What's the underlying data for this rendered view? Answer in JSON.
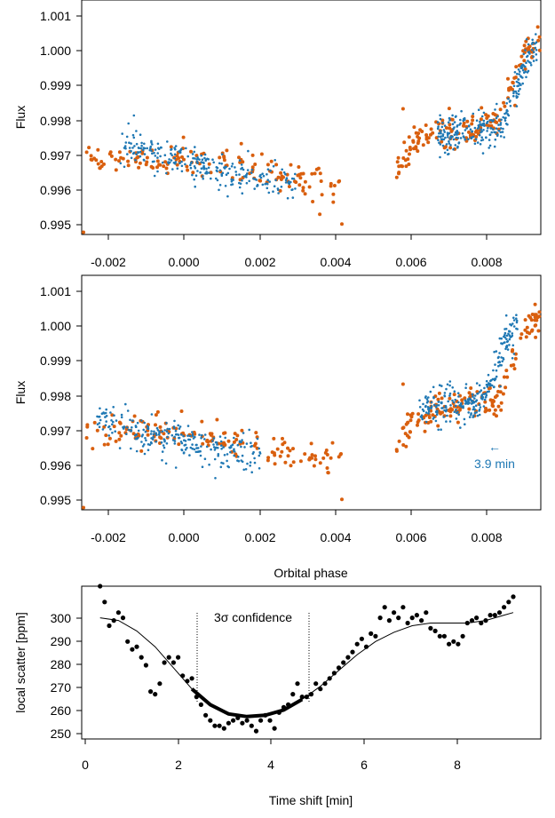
{
  "colors": {
    "orange": "#d95f0e",
    "blue": "#1f78b4",
    "black": "#000000"
  },
  "chart_data": [
    {
      "type": "scatter",
      "ylabel": "Flux",
      "xlim": [
        -0.0025,
        0.0095
      ],
      "ylim": [
        0.99495,
        1.0012
      ],
      "xticks": [
        "-0.002",
        "0.000",
        "0.002",
        "0.004",
        "0.006",
        "0.008"
      ],
      "yticks": [
        "0.995",
        "0.996",
        "0.997",
        "0.998",
        "0.999",
        "1.000",
        "1.001"
      ],
      "series": [
        {
          "color": "orange",
          "segments": [
            {
              "x": [
                -0.0024,
                -0.0012,
                -0.0006,
                0.0,
                0.0006,
                0.0012,
                0.0018,
                0.0024,
                0.003,
                0.0036,
                0.0043
              ],
              "y": [
                0.99705,
                0.99705,
                0.997,
                0.99695,
                0.9969,
                0.9968,
                0.99665,
                0.9965,
                0.9964,
                0.99625,
                0.99625
              ]
            },
            {
              "x": [
                0.0057,
                0.0062,
                0.0068,
                0.0074,
                0.008,
                0.0084,
                0.0087,
                0.0091,
                0.0095
              ],
              "y": [
                0.9966,
                0.99745,
                0.99765,
                0.99775,
                0.9978,
                0.9979,
                0.9989,
                0.9998,
                1.00005
              ]
            }
          ],
          "outliers": [
            {
              "x": -0.0025,
              "y": 0.99501
            },
            {
              "x": 0.0043,
              "y": 0.99523
            },
            {
              "x": 0.0059,
              "y": 0.9983
            }
          ]
        },
        {
          "color": "blue",
          "segments": [
            {
              "x": [
                -0.0015,
                -0.001,
                -0.0005,
                0.0,
                0.0006,
                0.0012,
                0.0018,
                0.0024,
                0.0031
              ],
              "y": [
                0.99735,
                0.99725,
                0.99705,
                0.9969,
                0.99685,
                0.9966,
                0.9965,
                0.99645,
                0.9963
              ]
            },
            {
              "x": [
                0.0068,
                0.0074,
                0.008,
                0.0085,
                0.0088,
                0.0091,
                0.0094
              ],
              "y": [
                0.99765,
                0.9977,
                0.99775,
                0.99785,
                0.9987,
                0.9995,
                0.99985
              ]
            }
          ]
        }
      ]
    },
    {
      "type": "scatter",
      "ylabel": "Flux",
      "xlabel": "Orbital phase",
      "xlim": [
        -0.0025,
        0.0095
      ],
      "ylim": [
        0.99495,
        1.0012
      ],
      "xticks": [
        "-0.002",
        "0.000",
        "0.002",
        "0.004",
        "0.006",
        "0.008"
      ],
      "yticks": [
        "0.995",
        "0.996",
        "0.997",
        "0.998",
        "0.999",
        "1.000",
        "1.001"
      ],
      "annotation": {
        "text": "3.9 min",
        "arrow": "←",
        "x": 0.008,
        "y": 0.99649
      },
      "series": [
        {
          "color": "orange",
          "segments": [
            {
              "x": [
                -0.0024,
                -0.0012,
                -0.0006,
                0.0,
                0.0006,
                0.0012,
                0.0018,
                0.0024,
                0.003,
                0.0036,
                0.0043
              ],
              "y": [
                0.99705,
                0.99705,
                0.997,
                0.99695,
                0.9969,
                0.9968,
                0.99665,
                0.9965,
                0.9964,
                0.99625,
                0.99625
              ]
            },
            {
              "x": [
                0.0057,
                0.0062,
                0.0068,
                0.0074,
                0.008,
                0.0084,
                0.0087,
                0.0091,
                0.0095
              ],
              "y": [
                0.9966,
                0.99745,
                0.99765,
                0.99775,
                0.9978,
                0.9979,
                0.9989,
                0.9998,
                1.00005
              ]
            }
          ],
          "outliers": [
            {
              "x": -0.0025,
              "y": 0.99501
            },
            {
              "x": 0.0043,
              "y": 0.99523
            },
            {
              "x": 0.0059,
              "y": 0.9983
            }
          ]
        },
        {
          "color": "blue",
          "segments": [
            {
              "x": [
                -0.0021,
                -0.0016,
                -0.0011,
                -0.0006,
                -0.0001,
                0.0005,
                0.0011,
                0.0017,
                0.0022
              ],
              "y": [
                0.99735,
                0.99725,
                0.99705,
                0.9969,
                0.99685,
                0.9966,
                0.9965,
                0.99645,
                0.9963
              ]
            },
            {
              "x": [
                0.0063,
                0.0069,
                0.0075,
                0.008,
                0.0083,
                0.0086,
                0.0089
              ],
              "y": [
                0.99765,
                0.9977,
                0.99775,
                0.99785,
                0.9987,
                0.9995,
                0.99985
              ]
            }
          ]
        }
      ]
    },
    {
      "type": "scatter",
      "xlabel": "Time shift [min]",
      "ylabel": "local scatter [ppm]",
      "xlim": [
        0,
        10
      ],
      "ylim": [
        249,
        307
      ],
      "xticks": [
        "0",
        "2",
        "4",
        "6",
        "8"
      ],
      "yticks": [
        "250",
        "260",
        "270",
        "280",
        "290",
        "300"
      ],
      "annotation": {
        "text": "3σ confidence",
        "x_low": 2.4,
        "x_high": 4.85
      },
      "fit": {
        "x": [
          0.4,
          0.8,
          1.2,
          1.6,
          2.0,
          2.4,
          2.8,
          3.2,
          3.6,
          4.0,
          4.4,
          4.8,
          5.2,
          5.6,
          6.0,
          6.4,
          6.8,
          7.2,
          7.6,
          8.0,
          8.4,
          8.8,
          9.2,
          9.4
        ],
        "y": [
          295,
          294,
          290,
          284,
          276,
          268,
          262,
          258.5,
          257.5,
          258,
          260,
          264,
          269,
          275,
          281,
          286,
          289.5,
          292,
          293,
          293,
          293,
          294,
          296,
          297
        ]
      },
      "points_x": [
        0.4,
        0.5,
        0.6,
        0.7,
        0.8,
        0.9,
        1.0,
        1.1,
        1.2,
        1.3,
        1.4,
        1.5,
        1.6,
        1.7,
        1.8,
        1.9,
        2.0,
        2.1,
        2.2,
        2.3,
        2.4,
        2.5,
        2.6,
        2.7,
        2.8,
        2.9,
        3.0,
        3.1,
        3.2,
        3.3,
        3.4,
        3.5,
        3.6,
        3.7,
        3.8,
        3.9,
        4.0,
        4.1,
        4.2,
        4.3,
        4.4,
        4.5,
        4.6,
        4.7,
        4.8,
        4.9,
        5.0,
        5.1,
        5.2,
        5.3,
        5.4,
        5.5,
        5.6,
        5.7,
        5.8,
        5.9,
        6.0,
        6.1,
        6.2,
        6.3,
        6.4,
        6.5,
        6.6,
        6.7,
        6.8,
        6.9,
        7.0,
        7.1,
        7.2,
        7.3,
        7.4,
        7.5,
        7.6,
        7.7,
        7.8,
        7.9,
        8.0,
        8.1,
        8.2,
        8.3,
        8.4,
        8.5,
        8.6,
        8.7,
        8.8,
        8.9,
        9.0,
        9.1,
        9.2,
        9.3,
        9.4
      ],
      "points_y": [
        307,
        301,
        292,
        294,
        297,
        295,
        286,
        283,
        284,
        280,
        277,
        267,
        266,
        270,
        278,
        280,
        278,
        280,
        273,
        271,
        272,
        265,
        262,
        258,
        256,
        254,
        254,
        253,
        255,
        256,
        257,
        255,
        256,
        254,
        252,
        256,
        258,
        256,
        253,
        259,
        261,
        262,
        266,
        270,
        265,
        265,
        266,
        270,
        268,
        270,
        272,
        274,
        276,
        278,
        280,
        282,
        285,
        287,
        284,
        289,
        288,
        295,
        299,
        294,
        297,
        295,
        299,
        293,
        295,
        296,
        294,
        297,
        291,
        290,
        288,
        288,
        285,
        286,
        285,
        288,
        293,
        294,
        295,
        293,
        294,
        296,
        296,
        297,
        299,
        301,
        303
      ]
    }
  ]
}
